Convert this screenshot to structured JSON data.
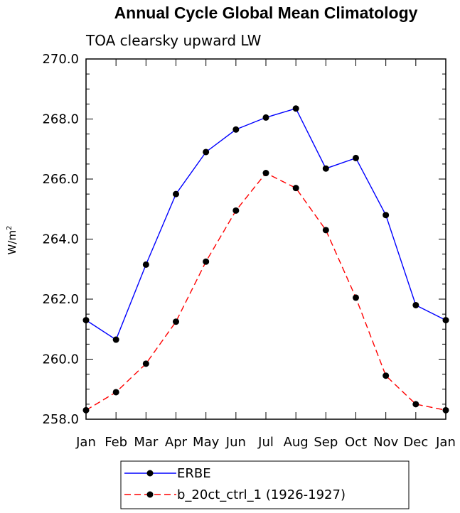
{
  "chart_data": {
    "type": "line",
    "title": "Annual Cycle Global Mean Climatology",
    "subtitle": "TOA clearsky upward LW",
    "ylabel_main": "W/m",
    "ylabel_sup": "2",
    "categories": [
      "Jan",
      "Feb",
      "Mar",
      "Apr",
      "May",
      "Jun",
      "Jul",
      "Aug",
      "Sep",
      "Oct",
      "Nov",
      "Dec",
      "Jan"
    ],
    "ylim": [
      258.0,
      270.0
    ],
    "yticks": [
      "258.0",
      "260.0",
      "262.0",
      "264.0",
      "266.0",
      "268.0",
      "270.0"
    ],
    "legend_placement": "bottom",
    "series": [
      {
        "name": "ERBE",
        "color": "#0000ff",
        "dash": "solid",
        "marker": "filled-circle",
        "values": [
          261.3,
          260.65,
          263.15,
          265.5,
          266.9,
          267.65,
          268.05,
          268.35,
          266.35,
          266.7,
          264.8,
          261.8,
          261.3
        ]
      },
      {
        "name": "b_20ct_ctrl_1 (1926-1927)",
        "color": "#ff0000",
        "dash": "dashed",
        "marker": "filled-circle",
        "values": [
          258.3,
          258.9,
          259.85,
          261.25,
          263.25,
          264.95,
          266.2,
          265.7,
          264.3,
          262.05,
          259.45,
          258.5,
          258.3
        ]
      }
    ]
  }
}
